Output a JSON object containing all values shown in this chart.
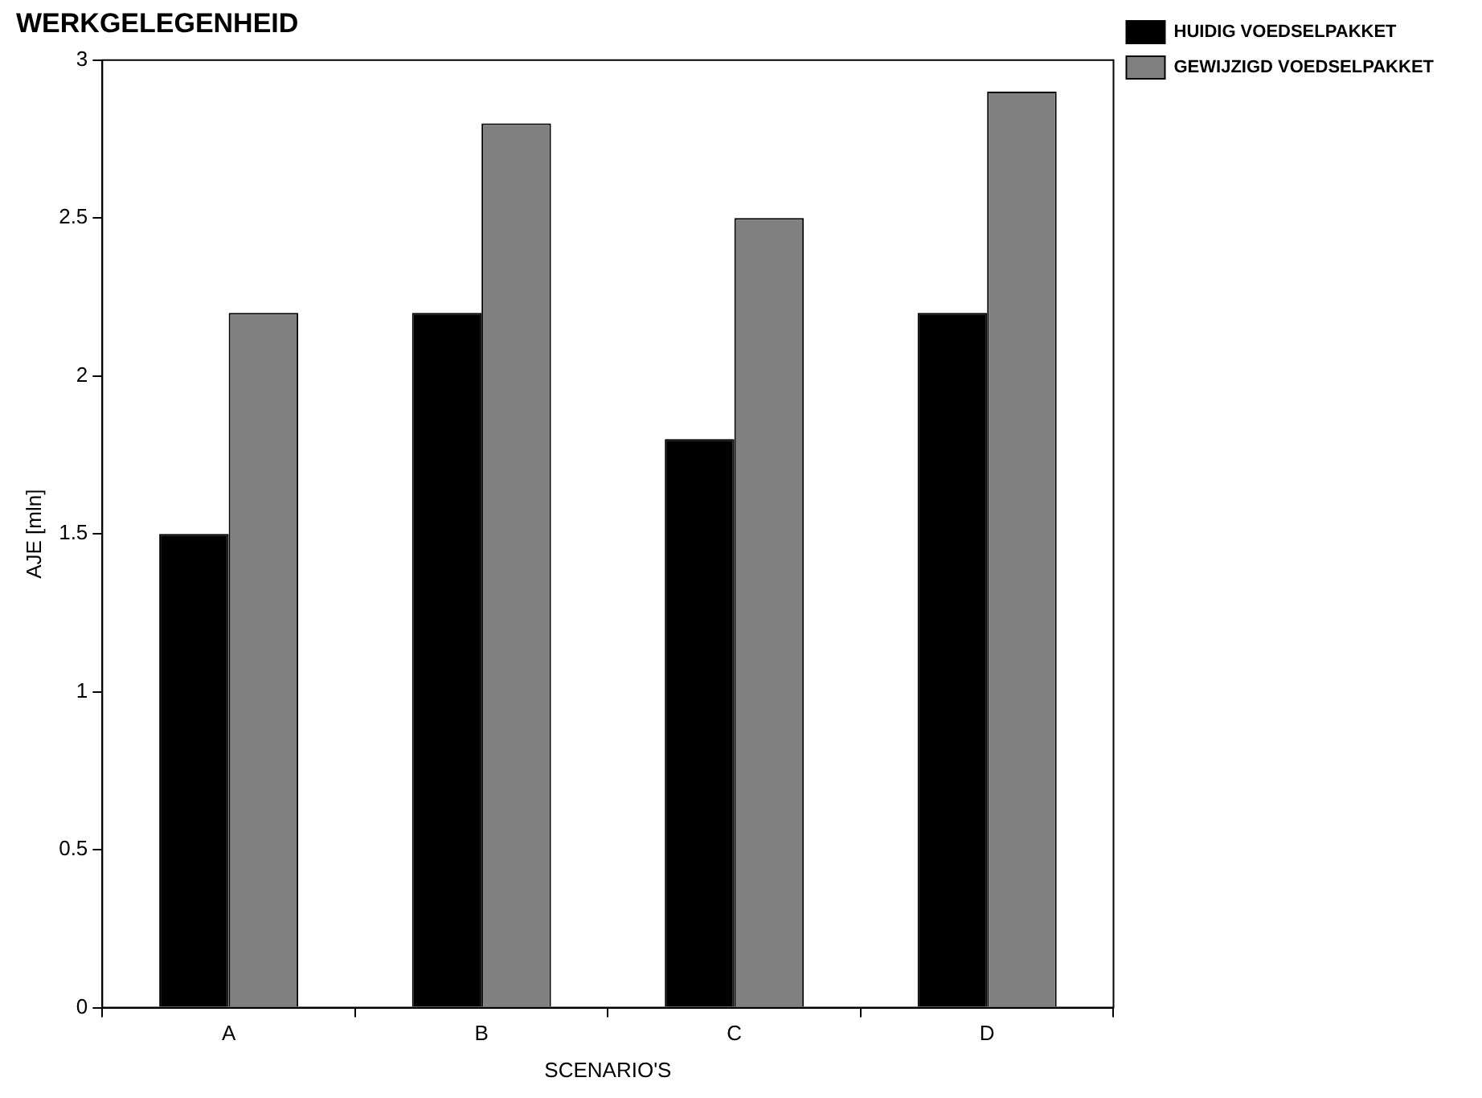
{
  "chart_data": {
    "type": "bar",
    "title": "WERKGELEGENHEID",
    "xlabel": "SCENARIO'S",
    "ylabel": "AJE [mln]",
    "categories": [
      "A",
      "B",
      "C",
      "D"
    ],
    "series": [
      {
        "name": "HUIDIG VOEDSELPAKKET",
        "color": "#000000",
        "values": [
          1.5,
          2.2,
          1.8,
          2.2
        ]
      },
      {
        "name": "GEWIJZIGD VOEDSELPAKKET",
        "color": "#808080",
        "values": [
          2.2,
          2.8,
          2.5,
          2.9
        ]
      }
    ],
    "ylim": [
      0,
      3
    ],
    "yticks": [
      0,
      0.5,
      1,
      1.5,
      2,
      2.5,
      3
    ],
    "grid": false,
    "legend": "top right"
  }
}
